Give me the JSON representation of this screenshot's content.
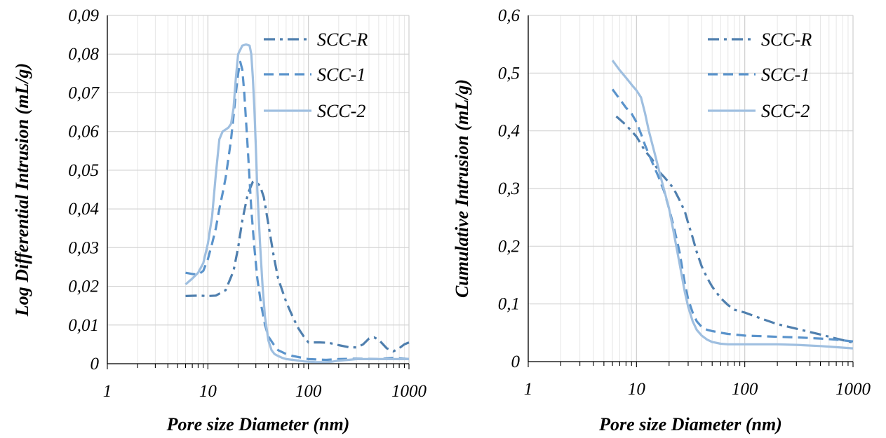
{
  "chart_data": [
    {
      "type": "line",
      "xlabel": "Pore size Diameter (nm)",
      "ylabel": "Log Differential Intrusion (mL/g)",
      "xscale": "log",
      "xlim": [
        1,
        1000
      ],
      "ylim": [
        0,
        0.09
      ],
      "xticks": [
        "1",
        "10",
        "100",
        "1000"
      ],
      "yticks": [
        "0",
        "0,01",
        "0,02",
        "0,03",
        "0,04",
        "0,05",
        "0,06",
        "0,07",
        "0,08",
        "0,09"
      ],
      "grid": true,
      "legend_position": "top-right",
      "series": [
        {
          "name": "SCC-R",
          "color": "#4f7fae",
          "style": "dashdot",
          "x": [
            6,
            8,
            10,
            12,
            15,
            18,
            20,
            22,
            25,
            28,
            30,
            33,
            36,
            40,
            45,
            50,
            60,
            70,
            80,
            90,
            100,
            130,
            160,
            200,
            250,
            300,
            350,
            400,
            450,
            500,
            600,
            700,
            800,
            900,
            1000
          ],
          "y": [
            0.0175,
            0.0176,
            0.0175,
            0.0176,
            0.019,
            0.024,
            0.03,
            0.037,
            0.044,
            0.047,
            0.047,
            0.046,
            0.043,
            0.036,
            0.028,
            0.022,
            0.016,
            0.012,
            0.009,
            0.007,
            0.0055,
            0.0055,
            0.0054,
            0.0048,
            0.0043,
            0.0042,
            0.005,
            0.0065,
            0.0068,
            0.0062,
            0.004,
            0.0032,
            0.004,
            0.005,
            0.0055
          ]
        },
        {
          "name": "SCC-1",
          "color": "#5a93cb",
          "style": "dashed",
          "x": [
            6,
            7,
            8,
            9,
            10,
            11,
            12,
            13,
            14,
            15,
            16,
            17,
            18,
            19,
            20,
            21,
            22,
            23,
            25,
            27,
            29,
            31,
            34,
            37,
            40,
            45,
            50,
            60,
            70,
            80,
            100,
            150,
            200,
            300,
            500,
            700,
            1000
          ],
          "y": [
            0.0235,
            0.0232,
            0.023,
            0.024,
            0.027,
            0.031,
            0.035,
            0.04,
            0.044,
            0.048,
            0.053,
            0.058,
            0.064,
            0.07,
            0.075,
            0.078,
            0.076,
            0.07,
            0.055,
            0.04,
            0.03,
            0.022,
            0.015,
            0.01,
            0.007,
            0.005,
            0.0035,
            0.0025,
            0.002,
            0.0017,
            0.0012,
            0.001,
            0.0012,
            0.0013,
            0.0012,
            0.0015,
            0.0012
          ]
        },
        {
          "name": "SCC-2",
          "color": "#9fbfe0",
          "style": "solid",
          "x": [
            6,
            7,
            8,
            9,
            10,
            11,
            12,
            13,
            14,
            15,
            16,
            17,
            18,
            19,
            20,
            22,
            24,
            26,
            27,
            28,
            29,
            30,
            31,
            33,
            35,
            37,
            40,
            43,
            46,
            50,
            55,
            60,
            70,
            80,
            90,
            100,
            120,
            150,
            170,
            200,
            250,
            300,
            400,
            500,
            700,
            1000
          ],
          "y": [
            0.0205,
            0.022,
            0.0235,
            0.026,
            0.031,
            0.038,
            0.049,
            0.058,
            0.06,
            0.0605,
            0.061,
            0.062,
            0.066,
            0.074,
            0.08,
            0.0822,
            0.0825,
            0.0822,
            0.08,
            0.074,
            0.066,
            0.056,
            0.045,
            0.031,
            0.02,
            0.012,
            0.006,
            0.0035,
            0.0025,
            0.002,
            0.0015,
            0.0012,
            0.001,
            0.0008,
            0.0006,
            0.0005,
            0.0004,
            0.0004,
            0.0005,
            0.0008,
            0.001,
            0.0012,
            0.0012,
            0.0012,
            0.0012,
            0.0012
          ]
        }
      ]
    },
    {
      "type": "line",
      "xlabel": "Pore size Diameter (nm)",
      "ylabel": "Cumulative Intrusion (mL/g)",
      "xscale": "log",
      "xlim": [
        1,
        1000
      ],
      "ylim": [
        0,
        0.6
      ],
      "xticks": [
        "1",
        "10",
        "100",
        "1000"
      ],
      "yticks": [
        "0",
        "0,1",
        "0,2",
        "0,3",
        "0,4",
        "0,5",
        "0,6"
      ],
      "grid": true,
      "legend_position": "top-right",
      "series": [
        {
          "name": "SCC-R",
          "color": "#4f7fae",
          "style": "dashdot",
          "x": [
            6.5,
            8,
            10,
            12,
            14,
            16,
            18,
            20,
            22,
            25,
            28,
            30,
            33,
            36,
            40,
            45,
            50,
            60,
            70,
            80,
            100,
            150,
            200,
            300,
            500,
            700,
            1000
          ],
          "y": [
            0.425,
            0.41,
            0.39,
            0.365,
            0.35,
            0.33,
            0.32,
            0.31,
            0.3,
            0.28,
            0.26,
            0.24,
            0.215,
            0.19,
            0.165,
            0.145,
            0.13,
            0.11,
            0.098,
            0.09,
            0.085,
            0.073,
            0.065,
            0.057,
            0.047,
            0.04,
            0.033
          ]
        },
        {
          "name": "SCC-1",
          "color": "#5a93cb",
          "style": "dashed",
          "x": [
            6,
            7,
            8,
            9,
            10,
            11,
            12,
            14,
            16,
            18,
            20,
            22,
            25,
            28,
            30,
            33,
            36,
            40,
            45,
            50,
            60,
            70,
            80,
            100,
            150,
            200,
            300,
            500,
            700,
            1000
          ],
          "y": [
            0.472,
            0.455,
            0.44,
            0.43,
            0.415,
            0.395,
            0.375,
            0.345,
            0.32,
            0.295,
            0.265,
            0.235,
            0.19,
            0.135,
            0.108,
            0.085,
            0.07,
            0.06,
            0.055,
            0.053,
            0.05,
            0.048,
            0.047,
            0.045,
            0.044,
            0.043,
            0.042,
            0.04,
            0.038,
            0.035
          ]
        },
        {
          "name": "SCC-2",
          "color": "#9fbfe0",
          "style": "solid",
          "x": [
            6,
            7,
            8,
            9,
            10,
            11,
            12,
            13,
            15,
            17,
            20,
            22,
            25,
            28,
            30,
            33,
            36,
            40,
            45,
            50,
            60,
            70,
            80,
            100,
            150,
            200,
            300,
            500,
            700,
            1000
          ],
          "y": [
            0.522,
            0.505,
            0.492,
            0.48,
            0.47,
            0.458,
            0.43,
            0.4,
            0.355,
            0.315,
            0.265,
            0.225,
            0.17,
            0.12,
            0.095,
            0.07,
            0.055,
            0.045,
            0.038,
            0.034,
            0.031,
            0.03,
            0.03,
            0.03,
            0.03,
            0.03,
            0.029,
            0.027,
            0.025,
            0.023
          ]
        }
      ]
    }
  ]
}
